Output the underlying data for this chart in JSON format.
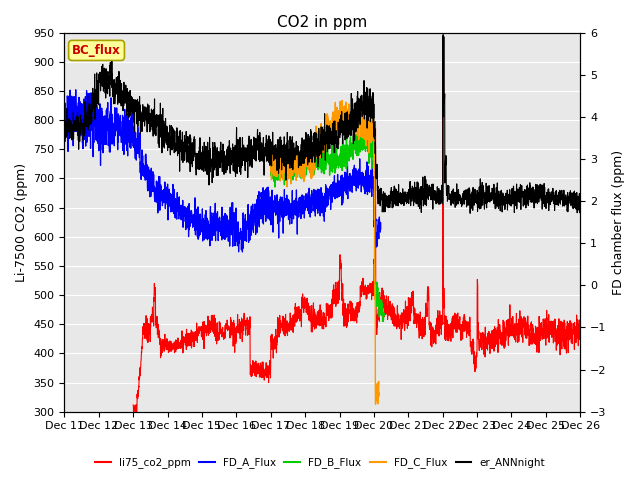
{
  "title": "CO2 in ppm",
  "ylabel_left": "Li-7500 CO2 (ppm)",
  "ylabel_right": "FD chamber flux (ppm)",
  "ylim_left": [
    300,
    950
  ],
  "ylim_right": [
    -3.0,
    6.0
  ],
  "yticks_left": [
    300,
    350,
    400,
    450,
    500,
    550,
    600,
    650,
    700,
    750,
    800,
    850,
    900,
    950
  ],
  "yticks_right": [
    -3.0,
    -2.0,
    -1.0,
    0.0,
    1.0,
    2.0,
    3.0,
    4.0,
    5.0,
    6.0
  ],
  "xlabel_ticks": [
    "Dec 11",
    "Dec 12",
    "Dec 13",
    "Dec 14",
    "Dec 15",
    "Dec 16",
    "Dec 17",
    "Dec 18",
    "Dec 19",
    "Dec 20",
    "Dec 21",
    "Dec 22",
    "Dec 23",
    "Dec 24",
    "Dec 25",
    "Dec 26"
  ],
  "bg_color": "#e8e8e8",
  "grid_color": "#ffffff",
  "legend_items": [
    {
      "label": "li75_co2_ppm",
      "color": "#ff0000"
    },
    {
      "label": "FD_A_Flux",
      "color": "#0000ff"
    },
    {
      "label": "FD_B_Flux",
      "color": "#00cc00"
    },
    {
      "label": "FD_C_Flux",
      "color": "#ff9900"
    },
    {
      "label": "er_ANNnight",
      "color": "#000000"
    }
  ],
  "annotation_box": {
    "text": "BC_flux",
    "text_color": "#cc0000",
    "bg": "#ffff99",
    "edge": "#aaa000"
  },
  "title_fontsize": 11,
  "tick_fontsize": 8,
  "label_fontsize": 9
}
